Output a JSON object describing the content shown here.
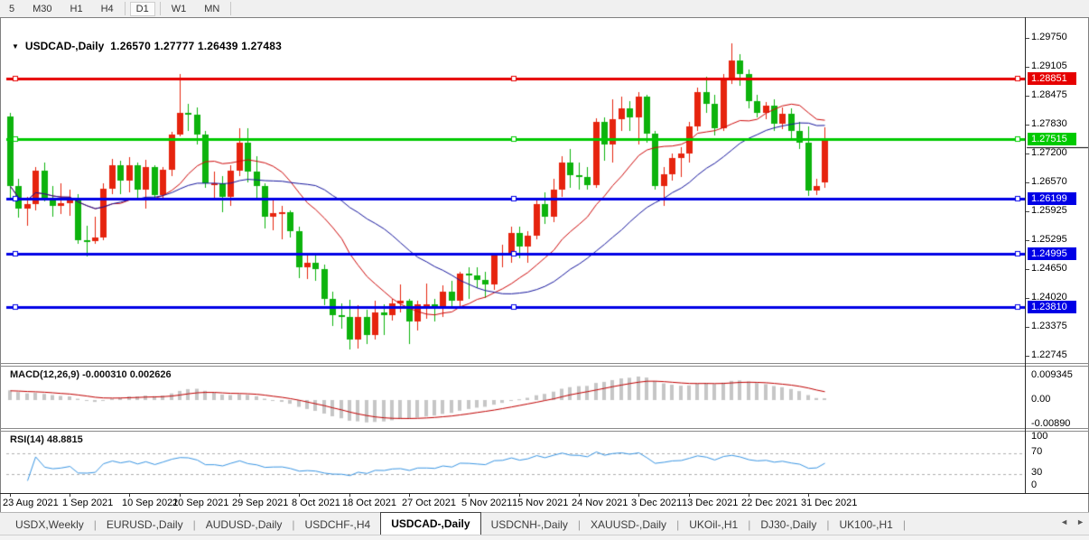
{
  "toolbar": {
    "timeframes": [
      {
        "label": "5",
        "active": false
      },
      {
        "label": "M30",
        "active": false
      },
      {
        "label": "H1",
        "active": false
      },
      {
        "label": "H4",
        "active": false
      },
      {
        "label": "D1",
        "active": true
      },
      {
        "label": "W1",
        "active": false
      },
      {
        "label": "MN",
        "active": false
      }
    ]
  },
  "window": {
    "dropdown_icon": "▼",
    "title_symbol": "USDCAD-,Daily",
    "title_ohlc": "1.26570 1.27777 1.26439 1.27483"
  },
  "indicators": {
    "macd": {
      "label": "MACD(12,26,9)",
      "values_text": "-0.000310 0.002626",
      "main_value": -0.00031,
      "signal_value": 0.002626,
      "axis_labels": [
        "0.009345",
        "0.00",
        "-0.00890"
      ]
    },
    "rsi": {
      "label": "RSI(14)",
      "value_text": "48.8815",
      "value": 48.8815,
      "axis_labels": [
        "100",
        "70",
        "30",
        "0"
      ],
      "level_lines": [
        70,
        30
      ]
    }
  },
  "tabs": {
    "scroll_left_icon": "◄",
    "scroll_right_icon": "►",
    "items": [
      {
        "label": "USDX,Weekly",
        "active": false
      },
      {
        "label": "EURUSD-,Daily",
        "active": false
      },
      {
        "label": "AUDUSD-,Daily",
        "active": false
      },
      {
        "label": "USDCHF-,H4",
        "active": false
      },
      {
        "label": "USDCAD-,Daily",
        "active": true
      },
      {
        "label": "USDCNH-,Daily",
        "active": false
      },
      {
        "label": "XAUUSD-,Daily",
        "active": false
      },
      {
        "label": "UKOil-,H1",
        "active": false
      },
      {
        "label": "DJ30-,Daily",
        "active": false
      },
      {
        "label": "UK100-,H1",
        "active": false
      }
    ]
  },
  "chart_data": {
    "type": "candlestick",
    "title": "USDCAD-,Daily",
    "symbol": "USDCAD",
    "timeframe": "Daily",
    "last_bar": {
      "open": 1.2657,
      "high": 1.27777,
      "low": 1.26439,
      "close": 1.27483
    },
    "colors": {
      "up": "#e6240e",
      "down": "#0db30d",
      "ma_fast": "#cf0a0a",
      "ma_slow": "#16169e",
      "macd_histogram": "#c6c6c6",
      "macd_signal": "#c00000",
      "rsi_line": "#3a96e4"
    },
    "y_axis": {
      "tick_labels": [
        "1.29750",
        "1.29105",
        "1.28475",
        "1.27830",
        "1.27200",
        "1.26570",
        "1.25925",
        "1.25295",
        "1.24650",
        "1.24020",
        "1.23375",
        "1.22745"
      ]
    },
    "x_labels": [
      {
        "index": 0,
        "label": "23 Aug 2021"
      },
      {
        "index": 7,
        "label": "1 Sep 2021"
      },
      {
        "index": 14,
        "label": "10 Sep 2021"
      },
      {
        "index": 20,
        "label": "20 Sep 2021"
      },
      {
        "index": 27,
        "label": "29 Sep 2021"
      },
      {
        "index": 34,
        "label": "8 Oct 2021"
      },
      {
        "index": 40,
        "label": "18 Oct 2021"
      },
      {
        "index": 47,
        "label": "27 Oct 2021"
      },
      {
        "index": 54,
        "label": "5 Nov 2021"
      },
      {
        "index": 60,
        "label": "15 Nov 2021"
      },
      {
        "index": 67,
        "label": "24 Nov 2021"
      },
      {
        "index": 74,
        "label": "3 Dec 2021"
      },
      {
        "index": 80,
        "label": "13 Dec 2021"
      },
      {
        "index": 87,
        "label": "22 Dec 2021"
      },
      {
        "index": 94,
        "label": "31 Dec 2021"
      }
    ],
    "horizontal_lines": [
      {
        "value": 1.28851,
        "label": "1.28851",
        "color": "#e60000"
      },
      {
        "value": 1.27515,
        "label": "1.27515",
        "color": "#00ca00"
      },
      {
        "value": 1.26199,
        "label": "1.26199",
        "color": "#0000e6"
      },
      {
        "value": 1.24995,
        "label": "1.24995",
        "color": "#0000e6"
      },
      {
        "value": 1.2381,
        "label": "1.23810",
        "color": "#0000e6"
      }
    ],
    "moving_averages": [
      {
        "name": "fast",
        "period": 13,
        "color": "#cf0a0a"
      },
      {
        "name": "slow",
        "period": 26,
        "color": "#16169e"
      }
    ],
    "candles": [
      [
        1.2802,
        1.281,
        1.2622,
        1.2648
      ],
      [
        1.2648,
        1.2665,
        1.258,
        1.2598
      ],
      [
        1.2598,
        1.2624,
        1.256,
        1.2608
      ],
      [
        1.2608,
        1.269,
        1.2595,
        1.2682
      ],
      [
        1.2682,
        1.27,
        1.2615,
        1.262
      ],
      [
        1.262,
        1.2648,
        1.258,
        1.2605
      ],
      [
        1.2605,
        1.2655,
        1.2588,
        1.261
      ],
      [
        1.261,
        1.264,
        1.2583,
        1.2622
      ],
      [
        1.2622,
        1.263,
        1.252,
        1.253
      ],
      [
        1.253,
        1.2562,
        1.2495,
        1.2528
      ],
      [
        1.2528,
        1.258,
        1.252,
        1.2535
      ],
      [
        1.2535,
        1.2655,
        1.253,
        1.2642
      ],
      [
        1.2642,
        1.2708,
        1.263,
        1.2695
      ],
      [
        1.2695,
        1.2705,
        1.2632,
        1.266
      ],
      [
        1.266,
        1.2712,
        1.2635,
        1.2695
      ],
      [
        1.2695,
        1.27,
        1.2622,
        1.264
      ],
      [
        1.264,
        1.2707,
        1.26,
        1.269
      ],
      [
        1.269,
        1.2695,
        1.262,
        1.2628
      ],
      [
        1.2628,
        1.269,
        1.2618,
        1.2685
      ],
      [
        1.2685,
        1.2768,
        1.267,
        1.2762
      ],
      [
        1.2762,
        1.2896,
        1.2758,
        1.281
      ],
      [
        1.281,
        1.283,
        1.277,
        1.2805
      ],
      [
        1.2805,
        1.2822,
        1.274,
        1.2762
      ],
      [
        1.2762,
        1.277,
        1.2645,
        1.2655
      ],
      [
        1.2655,
        1.268,
        1.262,
        1.2655
      ],
      [
        1.2655,
        1.267,
        1.259,
        1.2625
      ],
      [
        1.2625,
        1.2695,
        1.2605,
        1.2682
      ],
      [
        1.2682,
        1.2775,
        1.267,
        1.2745
      ],
      [
        1.2745,
        1.2775,
        1.2655,
        1.268
      ],
      [
        1.268,
        1.2715,
        1.2622,
        1.2648
      ],
      [
        1.2648,
        1.2655,
        1.2555,
        1.258
      ],
      [
        1.258,
        1.2618,
        1.255,
        1.2588
      ],
      [
        1.2588,
        1.2605,
        1.2532,
        1.259
      ],
      [
        1.259,
        1.2595,
        1.2535,
        1.255
      ],
      [
        1.255,
        1.256,
        1.2446,
        1.247
      ],
      [
        1.247,
        1.25,
        1.2445,
        1.248
      ],
      [
        1.248,
        1.2502,
        1.244,
        1.2465
      ],
      [
        1.2465,
        1.2475,
        1.2385,
        1.24
      ],
      [
        1.24,
        1.2415,
        1.234,
        1.2365
      ],
      [
        1.2365,
        1.239,
        1.2335,
        1.236
      ],
      [
        1.236,
        1.2398,
        1.2288,
        1.231
      ],
      [
        1.231,
        1.2385,
        1.229,
        1.236
      ],
      [
        1.236,
        1.2375,
        1.23,
        1.232
      ],
      [
        1.232,
        1.2395,
        1.231,
        1.237
      ],
      [
        1.237,
        1.2388,
        1.232,
        1.2365
      ],
      [
        1.2365,
        1.24,
        1.2352,
        1.239
      ],
      [
        1.239,
        1.2432,
        1.237,
        1.2395
      ],
      [
        1.2395,
        1.24,
        1.23,
        1.235
      ],
      [
        1.235,
        1.2395,
        1.233,
        1.2388
      ],
      [
        1.2388,
        1.2433,
        1.2355,
        1.2388
      ],
      [
        1.2388,
        1.24,
        1.235,
        1.238
      ],
      [
        1.238,
        1.243,
        1.236,
        1.2415
      ],
      [
        1.2415,
        1.244,
        1.238,
        1.2395
      ],
      [
        1.2395,
        1.246,
        1.2385,
        1.2455
      ],
      [
        1.2455,
        1.247,
        1.24,
        1.2452
      ],
      [
        1.2452,
        1.247,
        1.2425,
        1.2442
      ],
      [
        1.2442,
        1.246,
        1.2402,
        1.2432
      ],
      [
        1.2432,
        1.25,
        1.242,
        1.2495
      ],
      [
        1.2495,
        1.252,
        1.247,
        1.25
      ],
      [
        1.25,
        1.256,
        1.248,
        1.2545
      ],
      [
        1.2545,
        1.256,
        1.249,
        1.2515
      ],
      [
        1.2515,
        1.255,
        1.248,
        1.254
      ],
      [
        1.254,
        1.262,
        1.253,
        1.2608
      ],
      [
        1.2608,
        1.2635,
        1.2565,
        1.258
      ],
      [
        1.258,
        1.2665,
        1.257,
        1.264
      ],
      [
        1.264,
        1.2715,
        1.2625,
        1.27
      ],
      [
        1.27,
        1.273,
        1.2645,
        1.2672
      ],
      [
        1.2672,
        1.27,
        1.264,
        1.2668
      ],
      [
        1.2668,
        1.269,
        1.264,
        1.265
      ],
      [
        1.265,
        1.2798,
        1.2645,
        1.279
      ],
      [
        1.279,
        1.28,
        1.2705,
        1.274
      ],
      [
        1.274,
        1.284,
        1.27,
        1.2795
      ],
      [
        1.2795,
        1.2845,
        1.277,
        1.282
      ],
      [
        1.282,
        1.2835,
        1.277,
        1.28
      ],
      [
        1.28,
        1.2855,
        1.274,
        1.2845
      ],
      [
        1.2845,
        1.285,
        1.2745,
        1.2765
      ],
      [
        1.2765,
        1.277,
        1.264,
        1.2648
      ],
      [
        1.2648,
        1.269,
        1.2605,
        1.2675
      ],
      [
        1.2675,
        1.272,
        1.266,
        1.271
      ],
      [
        1.271,
        1.2735,
        1.267,
        1.272
      ],
      [
        1.272,
        1.279,
        1.27,
        1.278
      ],
      [
        1.278,
        1.2865,
        1.277,
        1.2855
      ],
      [
        1.2855,
        1.289,
        1.281,
        1.283
      ],
      [
        1.283,
        1.285,
        1.276,
        1.2775
      ],
      [
        1.2775,
        1.2895,
        1.277,
        1.2885
      ],
      [
        1.2885,
        1.2964,
        1.2875,
        1.2925
      ],
      [
        1.2925,
        1.294,
        1.287,
        1.2895
      ],
      [
        1.2895,
        1.2905,
        1.282,
        1.2835
      ],
      [
        1.2835,
        1.285,
        1.28,
        1.281
      ],
      [
        1.281,
        1.2833,
        1.2795,
        1.2825
      ],
      [
        1.2825,
        1.284,
        1.277,
        1.2785
      ],
      [
        1.2785,
        1.2822,
        1.2775,
        1.2808
      ],
      [
        1.2808,
        1.282,
        1.2755,
        1.277
      ],
      [
        1.277,
        1.279,
        1.273,
        1.2745
      ],
      [
        1.2745,
        1.278,
        1.2626,
        1.2638
      ],
      [
        1.2638,
        1.2665,
        1.263,
        1.2648
      ],
      [
        1.2657,
        1.27777,
        1.26439,
        1.27483
      ]
    ]
  }
}
